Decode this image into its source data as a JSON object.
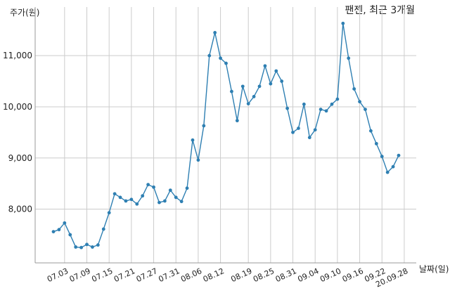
{
  "chart_data": {
    "type": "line",
    "title": "팬젠, 최근 3개월",
    "ylabel": "주가(원)",
    "xlabel": "날짜(일)",
    "y_ticks": [
      8000,
      9000,
      10000,
      11000
    ],
    "y_tick_labels": [
      "8,000",
      "9,000",
      "10,000",
      "11,000"
    ],
    "ylim": [
      6950,
      11950
    ],
    "x_tick_labels": [
      "07.03",
      "07.09",
      "07.15",
      "07.21",
      "07.27",
      "07.31",
      "08.06",
      "08.12",
      "08.19",
      "08.25",
      "08.31",
      "09.04",
      "09.10",
      "09.16",
      "09.22",
      "20.09.28"
    ],
    "x_tick_indices": [
      2,
      6,
      10,
      14,
      18,
      22,
      26,
      30,
      35,
      39,
      43,
      47,
      51,
      55,
      59,
      63
    ],
    "grid": true,
    "line_color": "#2e7fb2",
    "series": [
      {
        "values": [
          7560,
          7600,
          7730,
          7500,
          7260,
          7250,
          7310,
          7260,
          7300,
          7610,
          7930,
          8300,
          8230,
          8160,
          8190,
          8100,
          8260,
          8480,
          8430,
          8130,
          8160,
          8370,
          8230,
          8150,
          8410,
          9350,
          8960,
          9630,
          11000,
          11450,
          10950,
          10850,
          10300,
          9730,
          10400,
          10060,
          10200,
          10400,
          10800,
          10450,
          10700,
          10500,
          9970,
          9500,
          9580,
          10050,
          9400,
          9550,
          9950,
          9920,
          10050,
          10150,
          11630,
          10950,
          10350,
          10100,
          9950,
          9530,
          9280,
          9030,
          8720,
          8830,
          9050
        ]
      }
    ]
  }
}
